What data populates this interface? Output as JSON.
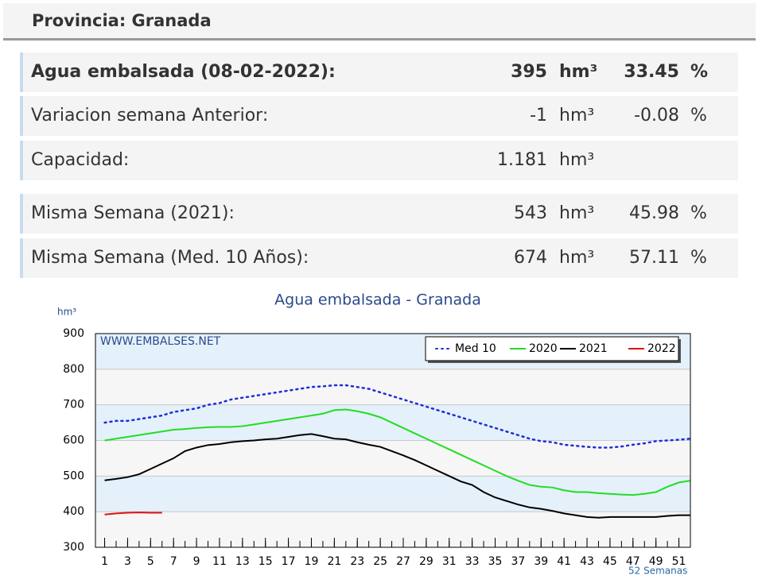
{
  "header": {
    "title": "Provincia: Granada"
  },
  "table": {
    "rows": [
      [
        "Agua embalsada (08-02-2022):",
        "395",
        "hm³",
        "33.45",
        "%"
      ],
      [
        "Variacion semana Anterior:",
        "-1",
        "hm³",
        "-0.08",
        "%"
      ],
      [
        "Capacidad:",
        "1.181",
        "hm³"
      ],
      [
        "Misma Semana (2021):",
        "543",
        "hm³",
        "45.98",
        "%"
      ],
      [
        "Misma Semana (Med. 10 Años):",
        "674",
        "hm³",
        "57.11",
        "%"
      ]
    ]
  },
  "chart_data": {
    "type": "line",
    "title": "Agua embalsada - Granada",
    "y_label": "hm³",
    "x_label": "52 Semanas",
    "watermark": "WWW.EMBALSES.NET",
    "x": [
      1,
      2,
      3,
      4,
      5,
      6,
      7,
      8,
      9,
      10,
      11,
      12,
      13,
      14,
      15,
      16,
      17,
      18,
      19,
      20,
      21,
      22,
      23,
      24,
      25,
      26,
      27,
      28,
      29,
      30,
      31,
      32,
      33,
      34,
      35,
      36,
      37,
      38,
      39,
      40,
      41,
      42,
      43,
      44,
      45,
      46,
      47,
      48,
      49,
      50,
      51,
      52
    ],
    "xlim": [
      0.2,
      52
    ],
    "xticks": [
      1,
      3,
      5,
      7,
      9,
      11,
      13,
      15,
      17,
      19,
      21,
      23,
      25,
      27,
      29,
      31,
      33,
      35,
      37,
      39,
      41,
      43,
      45,
      47,
      49,
      51
    ],
    "ylim": [
      300,
      900
    ],
    "yticks": [
      300,
      400,
      500,
      600,
      700,
      800,
      900
    ],
    "legend": "upper right",
    "series": [
      {
        "name": "Med 10",
        "color": "#1c2fd8",
        "dash": "dotted",
        "values": [
          650,
          655,
          655,
          660,
          665,
          670,
          680,
          685,
          690,
          700,
          705,
          715,
          720,
          725,
          730,
          735,
          740,
          745,
          750,
          752,
          755,
          755,
          750,
          745,
          735,
          725,
          715,
          705,
          695,
          685,
          675,
          665,
          655,
          645,
          635,
          625,
          615,
          605,
          598,
          595,
          588,
          585,
          582,
          580,
          580,
          583,
          588,
          592,
          598,
          600,
          602,
          605
        ]
      },
      {
        "name": "2020",
        "color": "#22dd22",
        "values": [
          600,
          605,
          610,
          615,
          620,
          625,
          630,
          632,
          635,
          637,
          638,
          638,
          640,
          645,
          650,
          655,
          660,
          665,
          670,
          675,
          685,
          687,
          682,
          675,
          665,
          650,
          635,
          620,
          605,
          590,
          575,
          560,
          545,
          530,
          515,
          500,
          487,
          475,
          470,
          468,
          460,
          455,
          455,
          452,
          450,
          448,
          447,
          450,
          455,
          470,
          482,
          487
        ]
      },
      {
        "name": "2021",
        "color": "#000000",
        "values": [
          488,
          492,
          497,
          505,
          520,
          535,
          550,
          570,
          580,
          587,
          590,
          595,
          598,
          600,
          603,
          605,
          610,
          615,
          618,
          612,
          605,
          603,
          595,
          588,
          582,
          570,
          558,
          545,
          530,
          515,
          500,
          485,
          475,
          455,
          440,
          430,
          420,
          412,
          408,
          402,
          395,
          390,
          385,
          383,
          385,
          385,
          385,
          385,
          385,
          388,
          390,
          390
        ]
      },
      {
        "name": "2022",
        "color": "#e01010",
        "values": [
          392,
          395,
          397,
          398,
          397,
          397,
          null,
          null,
          null,
          null,
          null,
          null,
          null,
          null,
          null,
          null,
          null,
          null,
          null,
          null,
          null,
          null,
          null,
          null,
          null,
          null,
          null,
          null,
          null,
          null,
          null,
          null,
          null,
          null,
          null,
          null,
          null,
          null,
          null,
          null,
          null,
          null,
          null,
          null,
          null,
          null,
          null,
          null,
          null,
          null,
          null,
          null
        ]
      }
    ]
  }
}
